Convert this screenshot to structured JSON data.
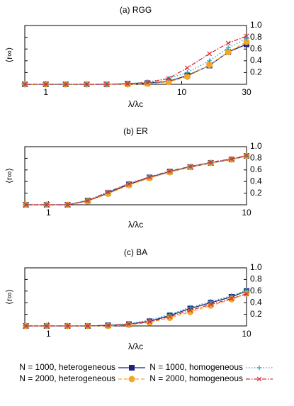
{
  "chart_data": [
    {
      "type": "line",
      "title": "(a) RGG",
      "xlabel": "λ/λc",
      "ylabel": "⟨r∞⟩",
      "log_x": true,
      "xlim": [
        0.7,
        30
      ],
      "xticks": [
        1,
        10,
        30
      ],
      "ylim": [
        0,
        1.0
      ],
      "yticks": [
        0.2,
        0.4,
        0.6,
        0.8,
        {
          "value": 1.0,
          "label": "1.0"
        }
      ],
      "x": [
        0.7,
        1,
        1.4,
        2,
        2.8,
        4,
        5.6,
        8,
        11,
        16,
        22,
        30
      ],
      "series": [
        {
          "name": "N = 1000, heterogeneous",
          "color": "#1a237e",
          "marker": "square",
          "linestyle": "solid",
          "values": [
            0,
            0,
            0,
            0,
            0,
            0.01,
            0.02,
            0.05,
            0.15,
            0.32,
            0.55,
            0.68
          ]
        },
        {
          "name": "N = 2000, heterogeneous",
          "color": "#f5a623",
          "marker": "circle",
          "linestyle": "dashed",
          "values": [
            0,
            0,
            0,
            0,
            0,
            0,
            0.01,
            0.04,
            0.13,
            0.33,
            0.55,
            0.72
          ]
        },
        {
          "name": "N = 1000, homogeneous",
          "color": "#2aa0b0",
          "marker": "plus",
          "linestyle": "dotted",
          "values": [
            0,
            0,
            0,
            0,
            0,
            0.01,
            0.04,
            0.1,
            0.2,
            0.4,
            0.62,
            0.78
          ]
        },
        {
          "name": "N = 2000, homogeneous",
          "color": "#d0303a",
          "marker": "cross",
          "linestyle": "dashdot",
          "values": [
            0,
            0,
            0,
            0,
            0,
            0.01,
            0.03,
            0.1,
            0.28,
            0.52,
            0.7,
            0.82
          ]
        }
      ]
    },
    {
      "type": "line",
      "title": "(b) ER",
      "xlabel": "λ/λc",
      "ylabel": "⟨r∞⟩",
      "log_x": true,
      "xlim": [
        0.76,
        10
      ],
      "xticks": [
        1,
        10
      ],
      "ylim": [
        0,
        1.0
      ],
      "yticks": [
        0.2,
        0.4,
        0.6,
        0.8,
        {
          "value": 1.0,
          "label": "1.0"
        }
      ],
      "x": [
        0.77,
        0.98,
        1.25,
        1.58,
        2.0,
        2.55,
        3.24,
        4.1,
        5.2,
        6.6,
        8.4,
        10
      ],
      "series": [
        {
          "name": "N = 1000, heterogeneous",
          "color": "#1a237e",
          "marker": "square",
          "linestyle": "solid",
          "values": [
            0,
            0,
            0,
            0.07,
            0.2,
            0.35,
            0.47,
            0.57,
            0.65,
            0.72,
            0.78,
            0.84
          ]
        },
        {
          "name": "N = 2000, heterogeneous",
          "color": "#f5a623",
          "marker": "circle",
          "linestyle": "dashed",
          "values": [
            0,
            0,
            0,
            0.06,
            0.19,
            0.34,
            0.46,
            0.56,
            0.65,
            0.72,
            0.78,
            0.84
          ]
        },
        {
          "name": "N = 1000, homogeneous",
          "color": "#2aa0b0",
          "marker": "plus",
          "linestyle": "dotted",
          "values": [
            0,
            0,
            0,
            0.08,
            0.22,
            0.37,
            0.48,
            0.58,
            0.66,
            0.73,
            0.79,
            0.84
          ]
        },
        {
          "name": "N = 2000, homogeneous",
          "color": "#d0303a",
          "marker": "cross",
          "linestyle": "dashdot",
          "values": [
            0,
            0,
            0,
            0.07,
            0.22,
            0.36,
            0.48,
            0.58,
            0.66,
            0.73,
            0.79,
            0.85
          ]
        }
      ]
    },
    {
      "type": "line",
      "title": "(c) BA",
      "xlabel": "λ/λc",
      "ylabel": "⟨r∞⟩",
      "log_x": true,
      "xlim": [
        0.76,
        10
      ],
      "xticks": [
        1,
        10
      ],
      "ylim": [
        0,
        1.0
      ],
      "yticks": [
        0.2,
        0.4,
        0.6,
        0.8,
        {
          "value": 1.0,
          "label": "1.0"
        }
      ],
      "x": [
        0.77,
        0.98,
        1.25,
        1.58,
        2.0,
        2.55,
        3.24,
        4.1,
        5.2,
        6.6,
        8.4,
        10
      ],
      "series": [
        {
          "name": "N = 1000, heterogeneous",
          "color": "#1a237e",
          "marker": "square",
          "linestyle": "solid",
          "values": [
            0,
            0,
            0,
            0,
            0.01,
            0.03,
            0.08,
            0.18,
            0.3,
            0.4,
            0.5,
            0.6
          ]
        },
        {
          "name": "N = 2000, heterogeneous",
          "color": "#f5a623",
          "marker": "circle",
          "linestyle": "dashed",
          "values": [
            0,
            0,
            0,
            0,
            0,
            0.02,
            0.06,
            0.14,
            0.24,
            0.35,
            0.46,
            0.56
          ]
        },
        {
          "name": "N = 1000, homogeneous",
          "color": "#2aa0b0",
          "marker": "plus",
          "linestyle": "dotted",
          "values": [
            0,
            0,
            0,
            0,
            0.01,
            0.04,
            0.1,
            0.2,
            0.32,
            0.42,
            0.52,
            0.62
          ]
        },
        {
          "name": "N = 2000, homogeneous",
          "color": "#d0303a",
          "marker": "cross",
          "linestyle": "dashdot",
          "values": [
            0,
            0,
            0,
            0,
            0.01,
            0.03,
            0.07,
            0.16,
            0.27,
            0.37,
            0.47,
            0.55
          ]
        }
      ]
    }
  ]
}
